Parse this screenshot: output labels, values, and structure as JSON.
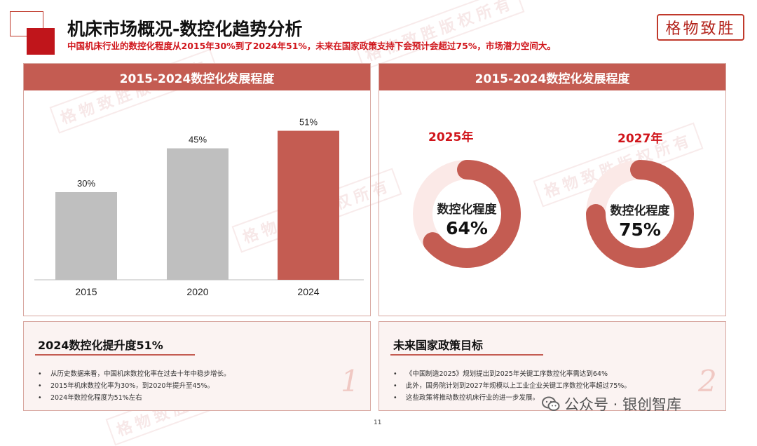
{
  "header": {
    "title": "机床市场概况-数控化趋势分析",
    "subtitle": "中国机床行业的数控化程度从2015年30%到了2024年51%，未来在国家政策支持下会预计会超过75%，市场潜力空间大。",
    "logo_text": "格物致胜"
  },
  "watermark_text": "格物致胜版权所有",
  "left_panel": {
    "title": "2015-2024数控化发展程度",
    "chart_data": {
      "type": "bar",
      "categories": [
        "2015",
        "2020",
        "2024"
      ],
      "values": [
        30,
        45,
        51
      ],
      "value_labels": [
        "30%",
        "45%",
        "51%"
      ],
      "ylim": [
        0,
        60
      ],
      "colors": [
        "#bfbfbf",
        "#bfbfbf",
        "#c45c52"
      ]
    }
  },
  "right_panel": {
    "title": "2015-2024数控化发展程度",
    "chart_data": [
      {
        "type": "pie",
        "year": "2025年",
        "center_label": "数控化程度",
        "center_value": "64%",
        "value": 64,
        "color": "#c45c52",
        "track_color": "#fbe9e7"
      },
      {
        "type": "pie",
        "year": "2027年",
        "center_label": "数控化程度",
        "center_value": "75%",
        "value": 75,
        "color": "#c45c52",
        "track_color": "#fbe9e7"
      }
    ]
  },
  "box1": {
    "title": "2024数控化提升度51%",
    "bullets": [
      "从历史数据来看，中国机床数控化率在过去十年中稳步增长。",
      "2015年机床数控化率为30%，到2020年提升至45%。",
      "2024年数控化程度为51%左右"
    ],
    "number": "1"
  },
  "box2": {
    "title": "未来国家政策目标",
    "bullets": [
      "《中国制造2025》规划提出到2025年关键工序数控化率需达到64%",
      "此外，国务院计划到2027年规模以上工业企业关键工序数控化率超过75%。",
      "这些政策将推动数控机床行业的进一步发展。"
    ],
    "number": "2"
  },
  "footer": {
    "page_number": "11",
    "wechat_text": "公众号 · 银创智库"
  }
}
